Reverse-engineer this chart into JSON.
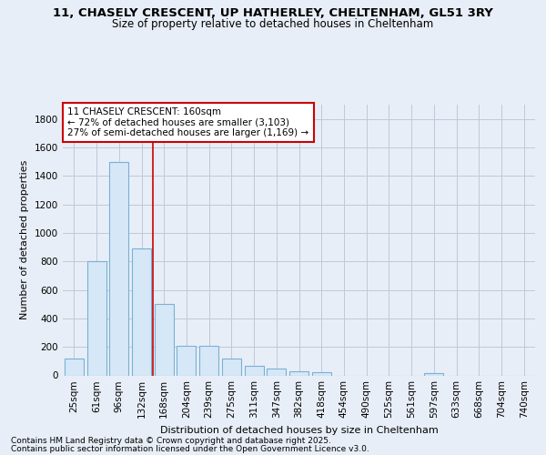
{
  "title1": "11, CHASELY CRESCENT, UP HATHERLEY, CHELTENHAM, GL51 3RY",
  "title2": "Size of property relative to detached houses in Cheltenham",
  "xlabel": "Distribution of detached houses by size in Cheltenham",
  "ylabel": "Number of detached properties",
  "categories": [
    "25sqm",
    "61sqm",
    "96sqm",
    "132sqm",
    "168sqm",
    "204sqm",
    "239sqm",
    "275sqm",
    "311sqm",
    "347sqm",
    "382sqm",
    "418sqm",
    "454sqm",
    "490sqm",
    "525sqm",
    "561sqm",
    "597sqm",
    "633sqm",
    "668sqm",
    "704sqm",
    "740sqm"
  ],
  "values": [
    120,
    800,
    1500,
    890,
    500,
    210,
    210,
    115,
    65,
    50,
    30,
    22,
    0,
    0,
    0,
    0,
    14,
    0,
    0,
    0,
    0
  ],
  "bar_color_fill": "#d6e8f7",
  "bar_color_edge": "#7ab0d4",
  "highlight_line_index": 3,
  "highlight_line_color": "#cc0000",
  "annotation_text": "11 CHASELY CRESCENT: 160sqm\n← 72% of detached houses are smaller (3,103)\n27% of semi-detached houses are larger (1,169) →",
  "annotation_box_color": "#ffffff",
  "annotation_border_color": "#cc0000",
  "ylim": [
    0,
    1900
  ],
  "yticks": [
    0,
    200,
    400,
    600,
    800,
    1000,
    1200,
    1400,
    1600,
    1800
  ],
  "footnote1": "Contains HM Land Registry data © Crown copyright and database right 2025.",
  "footnote2": "Contains public sector information licensed under the Open Government Licence v3.0.",
  "bg_color": "#e8eef7",
  "plot_bg_color": "#e8eef7",
  "grid_color": "#c0c8d8",
  "title1_fontsize": 9.5,
  "title2_fontsize": 8.5,
  "axis_label_fontsize": 8,
  "tick_fontsize": 7.5,
  "annotation_fontsize": 7.5,
  "footnote_fontsize": 6.5
}
